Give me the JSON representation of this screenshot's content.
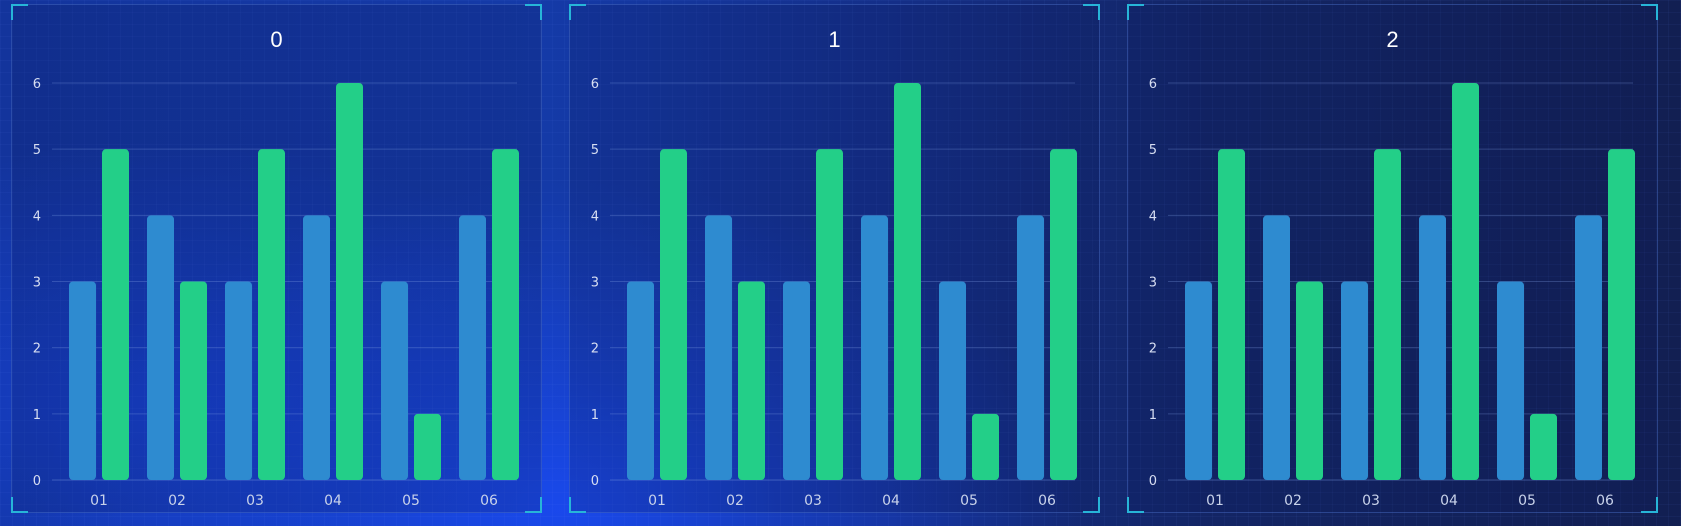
{
  "colors": {
    "series_a": "#2e8bd0",
    "series_b": "#23cf88",
    "grid": "rgba(130,160,230,0.30)",
    "frame_corner": "#27b5d8"
  },
  "chart_data": [
    {
      "type": "bar",
      "title": "0",
      "categories": [
        "01",
        "02",
        "03",
        "04",
        "05",
        "06"
      ],
      "series": [
        {
          "values": [
            3,
            4,
            3,
            4,
            3,
            4
          ],
          "color": "#2e8bd0"
        },
        {
          "values": [
            5,
            3,
            5,
            6,
            1,
            5
          ],
          "color": "#23cf88"
        }
      ],
      "yticks": [
        "0",
        "1",
        "2",
        "3",
        "4",
        "5",
        "6"
      ],
      "ylim": [
        0,
        6
      ],
      "grid": true
    },
    {
      "type": "bar",
      "title": "1",
      "categories": [
        "01",
        "02",
        "03",
        "04",
        "05",
        "06"
      ],
      "series": [
        {
          "values": [
            3,
            4,
            3,
            4,
            3,
            4
          ],
          "color": "#2e8bd0"
        },
        {
          "values": [
            5,
            3,
            5,
            6,
            1,
            5
          ],
          "color": "#23cf88"
        }
      ],
      "yticks": [
        "0",
        "1",
        "2",
        "3",
        "4",
        "5",
        "6"
      ],
      "ylim": [
        0,
        6
      ],
      "grid": true
    },
    {
      "type": "bar",
      "title": "2",
      "categories": [
        "01",
        "02",
        "03",
        "04",
        "05",
        "06"
      ],
      "series": [
        {
          "values": [
            3,
            4,
            3,
            4,
            3,
            4
          ],
          "color": "#2e8bd0"
        },
        {
          "values": [
            5,
            3,
            5,
            6,
            1,
            5
          ],
          "color": "#23cf88"
        }
      ],
      "yticks": [
        "0",
        "1",
        "2",
        "3",
        "4",
        "5",
        "6"
      ],
      "ylim": [
        0,
        6
      ],
      "grid": true
    }
  ]
}
